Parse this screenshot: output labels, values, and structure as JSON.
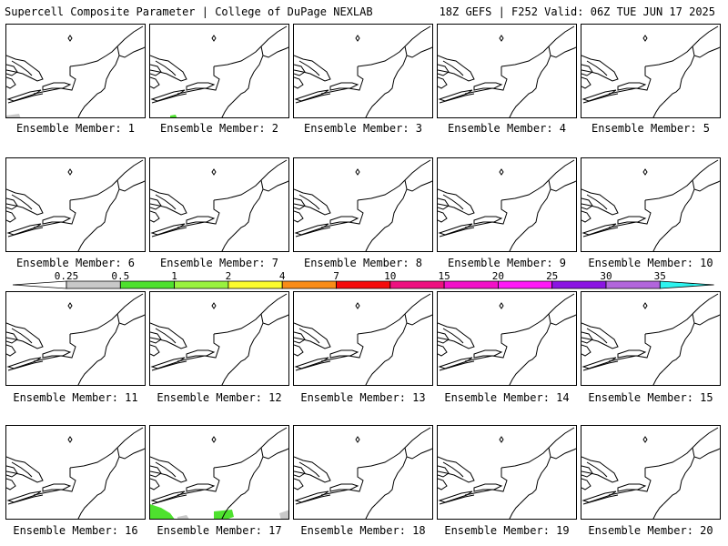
{
  "header": {
    "title": "Supercell Composite Parameter | College of DuPage NEXLAB",
    "run_info": "18Z GEFS | F252 Valid: 06Z TUE JUN 17 2025"
  },
  "panel_label_prefix": "Ensemble Member:",
  "members": [
    {
      "number": 1,
      "label": "Ensemble Member: 1",
      "shaded_areas": [
        "light-gray"
      ]
    },
    {
      "number": 2,
      "label": "Ensemble Member: 2",
      "shaded_areas": [
        "green"
      ]
    },
    {
      "number": 3,
      "label": "Ensemble Member: 3",
      "shaded_areas": []
    },
    {
      "number": 4,
      "label": "Ensemble Member: 4",
      "shaded_areas": []
    },
    {
      "number": 5,
      "label": "Ensemble Member: 5",
      "shaded_areas": []
    },
    {
      "number": 6,
      "label": "Ensemble Member: 6",
      "shaded_areas": []
    },
    {
      "number": 7,
      "label": "Ensemble Member: 7",
      "shaded_areas": []
    },
    {
      "number": 8,
      "label": "Ensemble Member: 8",
      "shaded_areas": []
    },
    {
      "number": 9,
      "label": "Ensemble Member: 9",
      "shaded_areas": []
    },
    {
      "number": 10,
      "label": "Ensemble Member: 10",
      "shaded_areas": []
    },
    {
      "number": 11,
      "label": "Ensemble Member: 11",
      "shaded_areas": []
    },
    {
      "number": 12,
      "label": "Ensemble Member: 12",
      "shaded_areas": []
    },
    {
      "number": 13,
      "label": "Ensemble Member: 13",
      "shaded_areas": []
    },
    {
      "number": 14,
      "label": "Ensemble Member: 14",
      "shaded_areas": []
    },
    {
      "number": 15,
      "label": "Ensemble Member: 15",
      "shaded_areas": []
    },
    {
      "number": 16,
      "label": "Ensemble Member: 16",
      "shaded_areas": []
    },
    {
      "number": 17,
      "label": "Ensemble Member: 17",
      "shaded_areas": [
        "green",
        "light-gray"
      ]
    },
    {
      "number": 18,
      "label": "Ensemble Member: 18",
      "shaded_areas": []
    },
    {
      "number": 19,
      "label": "Ensemble Member: 19",
      "shaded_areas": []
    },
    {
      "number": 20,
      "label": "Ensemble Member: 20",
      "shaded_areas": []
    }
  ],
  "colorbar": {
    "labels": [
      "0.25",
      "0.5",
      "1",
      "2",
      "4",
      "7",
      "10",
      "15",
      "20",
      "25",
      "30",
      "35"
    ],
    "colors": [
      "#c8c8c8",
      "#4ee12e",
      "#99f23e",
      "#fbfb2d",
      "#f98c17",
      "#f50b0b",
      "#ee1180",
      "#f211c8",
      "#ff18f7",
      "#8b14e2",
      "#b266dc",
      "#2ef4ef"
    ],
    "below_min_color": "#ffffff"
  },
  "colors": {
    "background": "#ffffff",
    "map_lines": "#000000",
    "green_shade": "#4ee12e",
    "gray_shade": "#c8c8c8"
  }
}
